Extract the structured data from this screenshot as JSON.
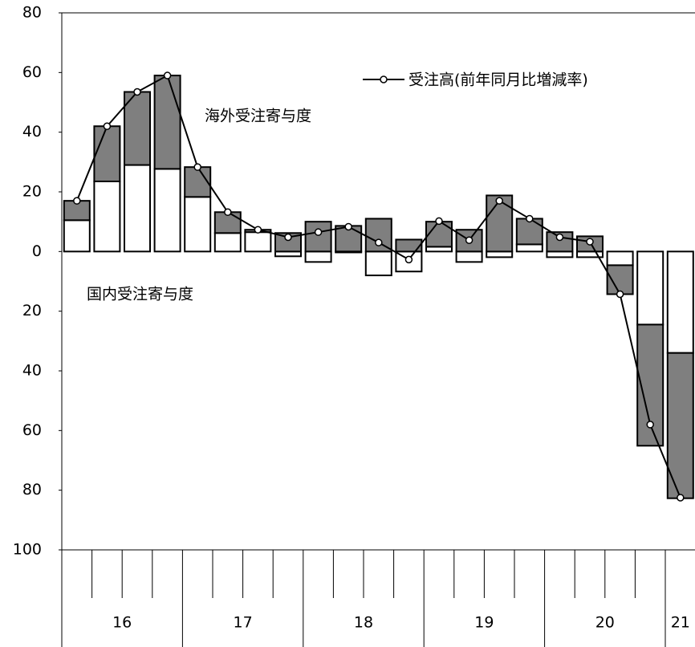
{
  "chart_data": {
    "type": "bar-line",
    "categories": [
      "16",
      null,
      null,
      null,
      "17",
      null,
      null,
      null,
      "18",
      null,
      null,
      null,
      "19",
      null,
      null,
      null,
      "20",
      null,
      null,
      null,
      "21"
    ],
    "series": [
      {
        "name": "国内受注寄与度",
        "type": "bar",
        "color": "#ffffff",
        "values": [
          10.5,
          23.5,
          29,
          27.7,
          18.3,
          6.2,
          6.5,
          -1.6,
          -3.5,
          -0.3,
          -8,
          -6.7,
          1.6,
          -3.5,
          -1.9,
          2.4,
          -1.9,
          -1.9,
          -4.6,
          -24.5,
          -34
        ]
      },
      {
        "name": "海外受注寄与度",
        "type": "bar",
        "color": "#7f7f7f",
        "values": [
          6.5,
          18.5,
          24.5,
          31.3,
          10,
          7,
          0.8,
          6.2,
          10,
          8.6,
          11,
          4,
          8.4,
          7.3,
          18.8,
          8.6,
          6.5,
          5.1,
          -9.7,
          -40.6,
          -48.7
        ]
      },
      {
        "name": "受注高(前年同月比増減率)",
        "type": "line",
        "color": "#000000",
        "values": [
          17,
          42,
          53.5,
          59,
          28.3,
          13.2,
          7.3,
          4.8,
          6.5,
          8.3,
          3,
          -2.7,
          10.2,
          3.8,
          17,
          11,
          4.8,
          3.3,
          -14.3,
          -58,
          -82.5
        ]
      }
    ],
    "ylim": [
      -100,
      80
    ],
    "yticks": [
      80,
      60,
      40,
      20,
      0,
      {
        "value": -20,
        "label": "20"
      },
      {
        "value": -40,
        "label": "40"
      },
      {
        "value": -60,
        "label": "60"
      },
      {
        "value": -80,
        "label": "80"
      },
      {
        "value": -100,
        "label": "100"
      }
    ],
    "grid": false
  }
}
